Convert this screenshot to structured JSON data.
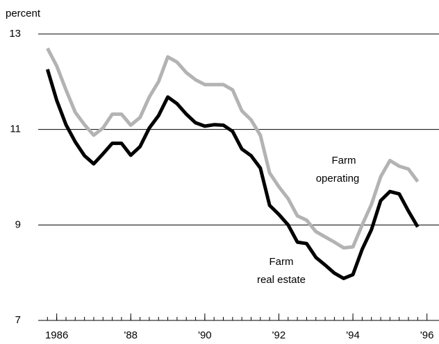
{
  "chart_data": {
    "type": "line",
    "y_label": "percent",
    "x": [
      1985.75,
      1986,
      1986.25,
      1986.5,
      1986.75,
      1987,
      1987.25,
      1987.5,
      1987.75,
      1988,
      1988.25,
      1988.5,
      1988.75,
      1989,
      1989.25,
      1989.5,
      1989.75,
      1990,
      1990.25,
      1990.5,
      1990.75,
      1991,
      1991.25,
      1991.5,
      1991.75,
      1992,
      1992.25,
      1992.5,
      1992.75,
      1993,
      1993.25,
      1993.5,
      1993.75,
      1994,
      1994.25,
      1994.5,
      1994.75,
      1995,
      1995.25,
      1995.5,
      1995.75
    ],
    "series": [
      {
        "name": "Farm operating",
        "color": "#b3b3b3",
        "values": [
          12.7,
          12.33,
          11.83,
          11.36,
          11.1,
          10.88,
          11.03,
          11.32,
          11.32,
          11.09,
          11.25,
          11.68,
          12.0,
          12.52,
          12.41,
          12.19,
          12.04,
          11.94,
          11.94,
          11.94,
          11.83,
          11.39,
          11.2,
          10.88,
          10.09,
          9.8,
          9.55,
          9.19,
          9.1,
          8.86,
          8.75,
          8.64,
          8.52,
          8.54,
          9.0,
          9.43,
          10.01,
          10.35,
          10.23,
          10.17,
          9.91
        ]
      },
      {
        "name": "Farm real estate",
        "color": "#000000",
        "values": [
          12.26,
          11.61,
          11.1,
          10.74,
          10.45,
          10.28,
          10.49,
          10.71,
          10.71,
          10.46,
          10.64,
          11.03,
          11.29,
          11.68,
          11.54,
          11.32,
          11.14,
          11.07,
          11.1,
          11.09,
          10.96,
          10.59,
          10.45,
          10.19,
          9.41,
          9.22,
          9.0,
          8.64,
          8.61,
          8.32,
          8.16,
          7.99,
          7.88,
          7.96,
          8.49,
          8.9,
          9.51,
          9.7,
          9.65,
          9.29,
          8.96
        ]
      }
    ],
    "annotations": [
      [
        "Farm",
        "operating"
      ],
      [
        "Farm",
        "real estate"
      ]
    ],
    "xlim": [
      1985.5,
      1996.25
    ],
    "xticks": [
      {
        "value": 1986,
        "label": "1986"
      },
      {
        "value": 1988,
        "label": "'88"
      },
      {
        "value": 1990,
        "label": "'90"
      },
      {
        "value": 1992,
        "label": "'92"
      },
      {
        "value": 1994,
        "label": "'94"
      },
      {
        "value": 1996,
        "label": "'96"
      }
    ],
    "ylim": [
      7,
      13
    ],
    "yticks": [
      7,
      9,
      11,
      13
    ],
    "grid": true
  }
}
